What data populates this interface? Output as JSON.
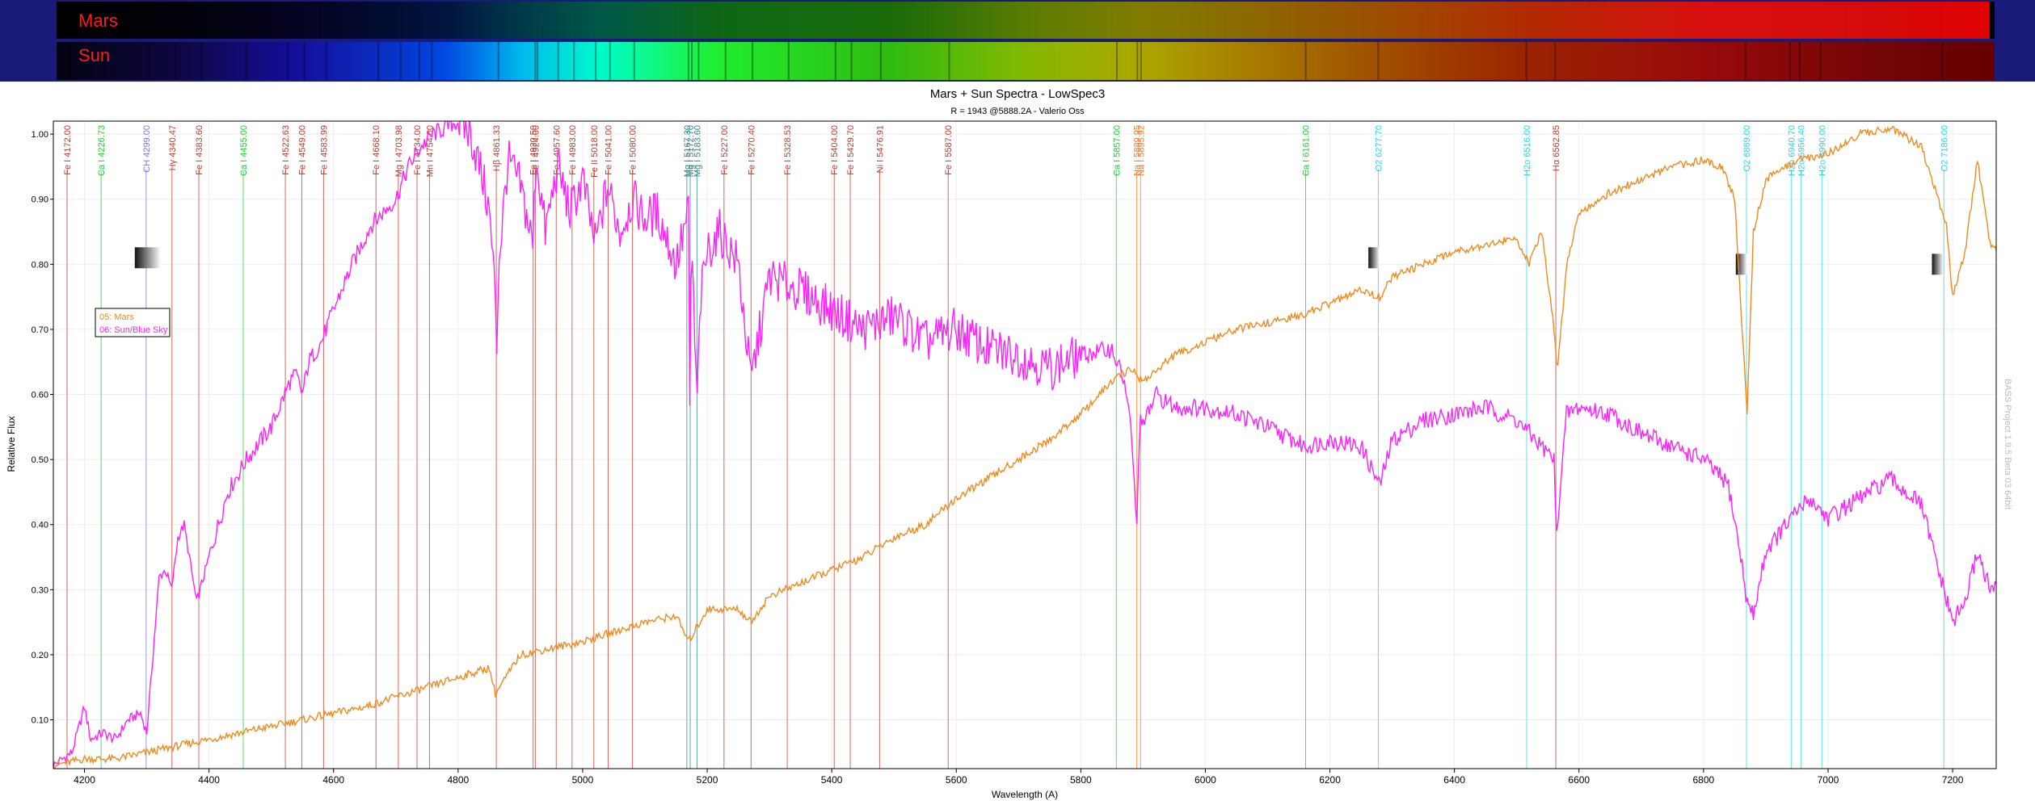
{
  "colors": {
    "frame": "#1a1a7a",
    "mars": "#ef8a1f",
    "sun": "#ff1fff",
    "banner_label": "#ff1a1a",
    "line_fe": "#c0392b",
    "line_ca": "#22cc33",
    "line_cyan": "#22d8e8",
    "line_ch": "#7777ee",
    "line_na": "#ff7722"
  },
  "banners": [
    {
      "label": "Mars"
    },
    {
      "label": "Sun"
    }
  ],
  "chart_data": {
    "type": "line",
    "title": "Mars + Sun Spectra - LowSpec3",
    "subtitle": "R = 1943 @5888.2A  - Valerio Oss",
    "xlabel": "Wavelength (A)",
    "ylabel": "Relative Flux",
    "watermark": "BASS Project 1.9.5 Beta 03 64bit",
    "xlim": [
      4150,
      7270
    ],
    "ylim": [
      0.025,
      1.02
    ],
    "x_ticks": [
      "4200",
      "4400",
      "4600",
      "4800",
      "5000",
      "5200",
      "5400",
      "5600",
      "5800",
      "6000",
      "6200",
      "6400",
      "6600",
      "6800",
      "7000",
      "7200"
    ],
    "y_ticks": [
      "0.10",
      "0.20",
      "0.30",
      "0.40",
      "0.50",
      "0.60",
      "0.70",
      "0.80",
      "0.90",
      "1.00"
    ],
    "legend": [
      "05: Mars",
      "06: Sun/Blue Sky"
    ],
    "legend_position": "left",
    "grid": true,
    "series": [
      {
        "name": "05: Mars",
        "x": [
          4150,
          4200,
          4250,
          4300,
          4350,
          4400,
          4450,
          4500,
          4550,
          4600,
          4650,
          4700,
          4750,
          4800,
          4850,
          4860,
          4900,
          4950,
          5000,
          5050,
          5100,
          5150,
          5170,
          5200,
          5250,
          5270,
          5300,
          5350,
          5400,
          5450,
          5500,
          5550,
          5600,
          5650,
          5700,
          5750,
          5800,
          5850,
          5880,
          5900,
          5950,
          6000,
          6050,
          6100,
          6150,
          6200,
          6250,
          6280,
          6300,
          6350,
          6400,
          6450,
          6500,
          6520,
          6540,
          6560,
          6565,
          6580,
          6600,
          6650,
          6700,
          6750,
          6800,
          6830,
          6850,
          6870,
          6880,
          6900,
          6950,
          7000,
          7050,
          7100,
          7150,
          7190,
          7200,
          7220,
          7240,
          7260,
          7270
        ],
        "y": [
          0.03,
          0.04,
          0.04,
          0.05,
          0.06,
          0.07,
          0.08,
          0.09,
          0.1,
          0.11,
          0.12,
          0.135,
          0.15,
          0.165,
          0.18,
          0.14,
          0.2,
          0.21,
          0.22,
          0.235,
          0.25,
          0.26,
          0.22,
          0.27,
          0.27,
          0.25,
          0.29,
          0.31,
          0.33,
          0.35,
          0.38,
          0.4,
          0.44,
          0.47,
          0.5,
          0.53,
          0.57,
          0.62,
          0.64,
          0.62,
          0.66,
          0.68,
          0.7,
          0.71,
          0.72,
          0.74,
          0.76,
          0.75,
          0.78,
          0.8,
          0.82,
          0.83,
          0.84,
          0.8,
          0.85,
          0.7,
          0.63,
          0.8,
          0.88,
          0.91,
          0.93,
          0.95,
          0.96,
          0.95,
          0.9,
          0.57,
          0.85,
          0.93,
          0.96,
          0.97,
          1.0,
          1.01,
          0.98,
          0.86,
          0.75,
          0.82,
          0.96,
          0.83,
          0.82
        ]
      },
      {
        "name": "06: Sun/Blue Sky",
        "x": [
          4150,
          4180,
          4200,
          4210,
          4230,
          4250,
          4270,
          4290,
          4300,
          4310,
          4320,
          4330,
          4340,
          4350,
          4360,
          4380,
          4400,
          4430,
          4460,
          4500,
          4530,
          4540,
          4550,
          4560,
          4580,
          4600,
          4630,
          4660,
          4680,
          4700,
          4720,
          4740,
          4760,
          4780,
          4800,
          4820,
          4840,
          4850,
          4860,
          4861,
          4865,
          4880,
          4900,
          4920,
          4925,
          4940,
          4960,
          4980,
          5000,
          5020,
          5040,
          5060,
          5080,
          5100,
          5120,
          5150,
          5170,
          5172,
          5175,
          5183,
          5190,
          5200,
          5220,
          5250,
          5270,
          5300,
          5350,
          5400,
          5450,
          5500,
          5550,
          5600,
          5650,
          5700,
          5750,
          5800,
          5850,
          5870,
          5880,
          5890,
          5896,
          5900,
          5920,
          5950,
          6000,
          6050,
          6100,
          6160,
          6200,
          6250,
          6280,
          6300,
          6350,
          6400,
          6450,
          6500,
          6520,
          6560,
          6563,
          6580,
          6600,
          6650,
          6700,
          6750,
          6800,
          6840,
          6860,
          6870,
          6880,
          6900,
          6950,
          6970,
          7000,
          7050,
          7100,
          7150,
          7180,
          7200,
          7220,
          7240,
          7260,
          7270
        ],
        "y": [
          0.03,
          0.05,
          0.12,
          0.07,
          0.08,
          0.07,
          0.1,
          0.11,
          0.08,
          0.2,
          0.32,
          0.33,
          0.3,
          0.38,
          0.4,
          0.28,
          0.35,
          0.45,
          0.5,
          0.55,
          0.62,
          0.63,
          0.6,
          0.65,
          0.68,
          0.73,
          0.8,
          0.86,
          0.88,
          0.9,
          0.95,
          0.98,
          1.0,
          1.01,
          1.02,
          1.0,
          0.93,
          0.88,
          0.75,
          0.63,
          0.8,
          0.96,
          0.92,
          0.83,
          0.97,
          0.85,
          0.95,
          0.88,
          0.93,
          0.83,
          0.92,
          0.85,
          0.9,
          0.87,
          0.88,
          0.8,
          0.88,
          0.58,
          0.85,
          0.58,
          0.75,
          0.82,
          0.85,
          0.8,
          0.62,
          0.78,
          0.76,
          0.73,
          0.7,
          0.72,
          0.68,
          0.7,
          0.67,
          0.66,
          0.64,
          0.66,
          0.67,
          0.62,
          0.55,
          0.4,
          0.58,
          0.55,
          0.6,
          0.58,
          0.58,
          0.57,
          0.55,
          0.52,
          0.53,
          0.52,
          0.46,
          0.53,
          0.56,
          0.57,
          0.58,
          0.56,
          0.54,
          0.5,
          0.38,
          0.57,
          0.58,
          0.57,
          0.54,
          0.52,
          0.5,
          0.46,
          0.35,
          0.28,
          0.26,
          0.36,
          0.42,
          0.44,
          0.41,
          0.44,
          0.47,
          0.43,
          0.32,
          0.25,
          0.28,
          0.36,
          0.3,
          0.3
        ]
      }
    ],
    "lines": [
      {
        "label": "Fe I 4172.00",
        "wl": 4172,
        "kind": "fe"
      },
      {
        "label": "Ca I 4226.73",
        "wl": 4226.73,
        "kind": "ca"
      },
      {
        "label": "CH 4299.00",
        "wl": 4299,
        "kind": "ch"
      },
      {
        "label": "Hγ 4340.47",
        "wl": 4340.47,
        "kind": "fe"
      },
      {
        "label": "Fe I 4383.60",
        "wl": 4383.6,
        "kind": "fe"
      },
      {
        "label": "Ca I 4455.00",
        "wl": 4455,
        "kind": "ca"
      },
      {
        "label": "Fe I 4522.63",
        "wl": 4522.63,
        "kind": "fe"
      },
      {
        "label": "Fe I 4549.00",
        "wl": 4549,
        "kind": "fe"
      },
      {
        "label": "Fe I 4583.99",
        "wl": 4583.99,
        "kind": "fe"
      },
      {
        "label": "Fe I 4668.10",
        "wl": 4668.1,
        "kind": "fe"
      },
      {
        "label": "Mg I 4703.98",
        "wl": 4703.98,
        "kind": "fe"
      },
      {
        "label": "Fe I 4734.00",
        "wl": 4734,
        "kind": "fe"
      },
      {
        "label": "Mn I 4754.00",
        "wl": 4754,
        "kind": "fe"
      },
      {
        "label": "Hβ 4861.33",
        "wl": 4861.33,
        "kind": "fe"
      },
      {
        "label": "Fe I 4920.50",
        "wl": 4920.5,
        "kind": "fe"
      },
      {
        "label": "Fe I 4924.00",
        "wl": 4924,
        "kind": "fe"
      },
      {
        "label": "Fe I 4957.60",
        "wl": 4957.6,
        "kind": "fe"
      },
      {
        "label": "Fe I 4983.00",
        "wl": 4983,
        "kind": "fe"
      },
      {
        "label": "Fe II 5018.00",
        "wl": 5018,
        "kind": "fe"
      },
      {
        "label": "Fe I 5041.00",
        "wl": 5041,
        "kind": "fe"
      },
      {
        "label": "Fe I 5080.00",
        "wl": 5080,
        "kind": "fe"
      },
      {
        "label": "Mg I 5167.30",
        "wl": 5167.3,
        "kind": "mg"
      },
      {
        "label": "Mg I 5172.70",
        "wl": 5172.7,
        "kind": "mg"
      },
      {
        "label": "Mg I 5183.60",
        "wl": 5183.6,
        "kind": "mg"
      },
      {
        "label": "Fe I 5227.00",
        "wl": 5227,
        "kind": "fe"
      },
      {
        "label": "Fe I 5270.40",
        "wl": 5270.4,
        "kind": "fe"
      },
      {
        "label": "Fe I 5328.53",
        "wl": 5328.53,
        "kind": "fe"
      },
      {
        "label": "Fe I 5404.00",
        "wl": 5404,
        "kind": "fe"
      },
      {
        "label": "Fe I 5429.70",
        "wl": 5429.7,
        "kind": "fe"
      },
      {
        "label": "Ni I 5476.91",
        "wl": 5476.91,
        "kind": "fe"
      },
      {
        "label": "Fe I 5587.00",
        "wl": 5587,
        "kind": "fe"
      },
      {
        "label": "Ca I 5857.00",
        "wl": 5857,
        "kind": "ca"
      },
      {
        "label": "Na I 5889.95",
        "wl": 5889.95,
        "kind": "na"
      },
      {
        "label": "Na I 5895.92",
        "wl": 5895.92,
        "kind": "na"
      },
      {
        "label": "Ca I 6161.00",
        "wl": 6161,
        "kind": "ca"
      },
      {
        "label": "O2 6277.70",
        "wl": 6277.7,
        "kind": "cyan"
      },
      {
        "label": "H2o 6516.00",
        "wl": 6516,
        "kind": "cyan"
      },
      {
        "label": "Hα 6562.85",
        "wl": 6562.85,
        "kind": "fe"
      },
      {
        "label": "O2 6869.00",
        "wl": 6869,
        "kind": "cyan"
      },
      {
        "label": "H2o 6940.70",
        "wl": 6940.7,
        "kind": "cyan"
      },
      {
        "label": "H2o 6956.40",
        "wl": 6956.4,
        "kind": "cyan"
      },
      {
        "label": "H2o 6990.00",
        "wl": 6990,
        "kind": "cyan"
      },
      {
        "label": "O2 7186.00",
        "wl": 7186,
        "kind": "cyan"
      }
    ]
  }
}
